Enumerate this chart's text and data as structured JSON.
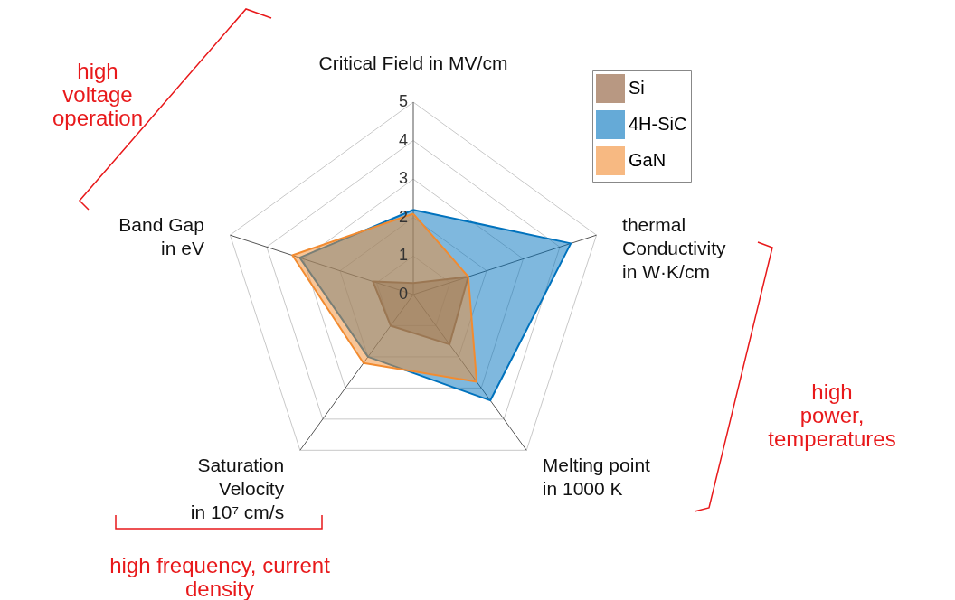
{
  "chart_data": {
    "type": "radar",
    "categories": [
      "Critical Field in MV/cm",
      "thermal\nConductivity\nin W·K/cm",
      "Melting point\nin 1000 K",
      "Saturation\nVelocity\nin 10⁷ cm/s",
      "Band Gap\nin eV"
    ],
    "series": [
      {
        "name": "Si",
        "color": "#8a5530",
        "values": [
          0.3,
          1.5,
          1.6,
          1.0,
          1.1
        ]
      },
      {
        "name": "4H-SiC",
        "color": "#0072bd",
        "values": [
          2.2,
          4.3,
          3.4,
          2.0,
          3.1
        ]
      },
      {
        "name": "GaN",
        "color": "#f28b30",
        "values": [
          2.1,
          1.5,
          2.8,
          2.2,
          3.3
        ]
      }
    ],
    "ylim": [
      0,
      5
    ],
    "yticks": [
      0,
      1,
      2,
      3,
      4,
      5
    ],
    "grid": true,
    "legend": "top right",
    "annotations": [
      "high\nvoltage\noperation",
      "high\npower,\ntemperatures",
      "high frequency, current\ndensity"
    ]
  }
}
